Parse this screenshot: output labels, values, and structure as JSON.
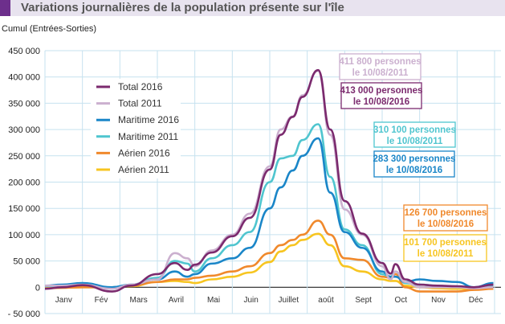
{
  "header": {
    "title": "Variations journalières de la population présente sur l'île",
    "accent": "#6d2f8c"
  },
  "chart_data": {
    "type": "line",
    "title": "Variations journalières de la population présente sur l'île",
    "ylabel": "Cumul (Entrées-Sorties)",
    "xlabel": "",
    "ylim": [
      -50000,
      450000
    ],
    "yticks": [
      -50000,
      0,
      50000,
      100000,
      150000,
      200000,
      250000,
      300000,
      350000,
      400000,
      450000
    ],
    "ytick_labels": [
      "- 50 000",
      "0",
      "50 000",
      "100 000",
      "150 000",
      "200 000",
      "250 000",
      "300 000",
      "350 000",
      "400 000",
      "450 000"
    ],
    "months": [
      "Janv",
      "Fév",
      "Mars",
      "Avril",
      "Mai",
      "Juin",
      "Juillet",
      "août",
      "Sept",
      "Oct",
      "Nov",
      "Déc"
    ],
    "grid": true,
    "legend_position": "top-left",
    "x": [
      "01-01",
      "01-15",
      "02-01",
      "02-24",
      "03-10",
      "04-01",
      "04-15",
      "04-25",
      "05-01",
      "05-15",
      "06-01",
      "06-15",
      "07-01",
      "07-10",
      "07-20",
      "07-28",
      "08-10",
      "08-20",
      "09-01",
      "09-15",
      "10-01",
      "10-08",
      "10-12",
      "10-20",
      "11-01",
      "11-15",
      "12-01",
      "12-15",
      "12-31"
    ],
    "series": [
      {
        "name": "Total 2016",
        "color": "#7b2a6e",
        "values": [
          -3000,
          0,
          4000,
          -8000,
          3000,
          25000,
          46000,
          33000,
          43000,
          66000,
          97000,
          132000,
          224000,
          290000,
          324000,
          362000,
          413000,
          300000,
          164000,
          102000,
          46000,
          26000,
          44000,
          15000,
          5000,
          3000,
          2000,
          0,
          5000
        ]
      },
      {
        "name": "Total 2011",
        "color": "#cbb0cf",
        "values": [
          3000,
          3000,
          5000,
          -3000,
          5000,
          15000,
          65000,
          55000,
          40000,
          70000,
          100000,
          140000,
          230000,
          300000,
          325000,
          365000,
          411800,
          290000,
          148000,
          100000,
          40000,
          15000,
          30000,
          10000,
          0,
          0,
          0,
          -2000,
          0
        ]
      },
      {
        "name": "Maritime 2016",
        "color": "#1a86c8",
        "values": [
          3000,
          5000,
          8000,
          0,
          5000,
          15000,
          30000,
          20000,
          25000,
          45000,
          55000,
          75000,
          150000,
          190000,
          222000,
          250000,
          283300,
          180000,
          105000,
          75000,
          30000,
          20000,
          20000,
          10000,
          15000,
          12000,
          10000,
          0,
          8000
        ]
      },
      {
        "name": "Maritime 2011",
        "color": "#4fc5cf",
        "values": [
          2000,
          3000,
          5000,
          0,
          5000,
          18000,
          50000,
          45000,
          30000,
          55000,
          80000,
          105000,
          200000,
          245000,
          250000,
          280000,
          310100,
          210000,
          110000,
          80000,
          25000,
          20000,
          30000,
          8000,
          5000,
          3000,
          0,
          0,
          3000
        ]
      },
      {
        "name": "Aérien 2016",
        "color": "#f0892c",
        "values": [
          -2000,
          -1000,
          0,
          0,
          3000,
          10000,
          15000,
          15000,
          18000,
          22000,
          30000,
          40000,
          65000,
          80000,
          90000,
          100000,
          126700,
          100000,
          55000,
          52000,
          20000,
          18000,
          25000,
          0,
          -8000,
          -8000,
          -8000,
          -5000,
          -3000
        ]
      },
      {
        "name": "Aérien 2011",
        "color": "#f7c520",
        "values": [
          -1000,
          -1000,
          0,
          0,
          2000,
          10000,
          12000,
          10000,
          8000,
          15000,
          20000,
          28000,
          48000,
          68000,
          80000,
          90000,
          101700,
          80000,
          40000,
          30000,
          15000,
          12000,
          12000,
          3000,
          0,
          -2000,
          -3000,
          -3000,
          0
        ]
      }
    ],
    "annotations": [
      {
        "line1": "411 800 personnes",
        "line2": "le 10/08/2011",
        "color": "#cbb0cf"
      },
      {
        "line1": "413 000 personnes",
        "line2": "le 10/08/2016",
        "color": "#7b2a6e"
      },
      {
        "line1": "310 100 personnes",
        "line2": "le 10/08/2011",
        "color": "#4fc5cf"
      },
      {
        "line1": "283 300 personnes",
        "line2": "le 10/08/2016",
        "color": "#1a86c8"
      },
      {
        "line1": "126 700 personnes",
        "line2": "le 10/08/2016",
        "color": "#f0892c"
      },
      {
        "line1": "101 700 personnes",
        "line2": "le 10/08/2011",
        "color": "#f7c520"
      }
    ]
  }
}
